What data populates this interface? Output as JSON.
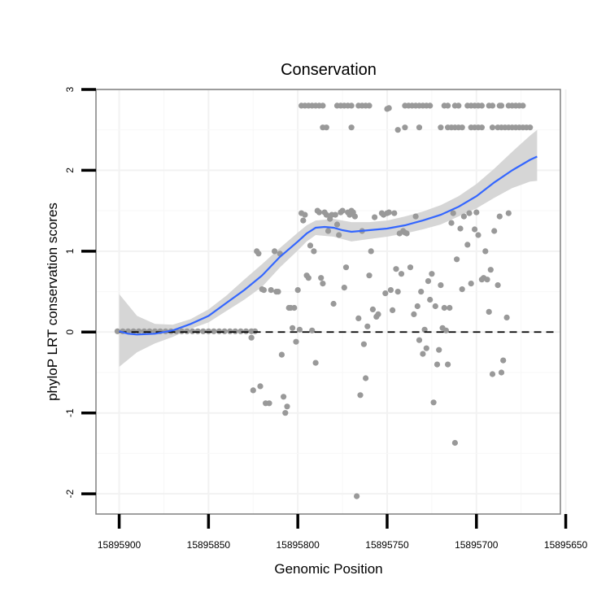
{
  "chart_data": {
    "type": "scatter",
    "title": "Conservation",
    "xlabel": "Genomic Position",
    "ylabel": "phyloP LRT conservation scores",
    "x_reversed": true,
    "xlim": [
      15895913,
      15895653
    ],
    "ylim": [
      -2.25,
      3.0
    ],
    "xticks": [
      15895900,
      15895850,
      15895800,
      15895750,
      15895700,
      15895650
    ],
    "yticks": [
      -2,
      -1,
      0,
      1,
      2,
      3
    ],
    "grid": true,
    "reference_line": 0,
    "colors": {
      "points": "#999999",
      "smooth": "#3366FF",
      "ribbon": "#D6D6D6",
      "frame": "#808080"
    },
    "points": [
      [
        15895901,
        0.01
      ],
      [
        15895898,
        0.01
      ],
      [
        15895895,
        0.01
      ],
      [
        15895892,
        0.01
      ],
      [
        15895889,
        0.01
      ],
      [
        15895886,
        0.01
      ],
      [
        15895883,
        0.01
      ],
      [
        15895880,
        0.01
      ],
      [
        15895877,
        0.01
      ],
      [
        15895874,
        0.01
      ],
      [
        15895871,
        0.01
      ],
      [
        15895868,
        0.01
      ],
      [
        15895865,
        0.01
      ],
      [
        15895862,
        0.01
      ],
      [
        15895859,
        0.01
      ],
      [
        15895856,
        0.01
      ],
      [
        15895853,
        0.01
      ],
      [
        15895850,
        0.01
      ],
      [
        15895847,
        0.01
      ],
      [
        15895844,
        0.01
      ],
      [
        15895841,
        0.01
      ],
      [
        15895838,
        0.01
      ],
      [
        15895835,
        0.01
      ],
      [
        15895832,
        0.01
      ],
      [
        15895829,
        0.01
      ],
      [
        15895826,
        0.01
      ],
      [
        15895824,
        0.01
      ],
      [
        15895826,
        -0.07
      ],
      [
        15895825,
        -0.72
      ],
      [
        15895823,
        1.0
      ],
      [
        15895822,
        0.97
      ],
      [
        15895821,
        -0.67
      ],
      [
        15895820,
        0.53
      ],
      [
        15895819,
        0.52
      ],
      [
        15895818,
        -0.88
      ],
      [
        15895816,
        -0.88
      ],
      [
        15895815,
        0.52
      ],
      [
        15895813,
        1.0
      ],
      [
        15895812,
        0.5
      ],
      [
        15895811,
        0.5
      ],
      [
        15895810,
        0.97
      ],
      [
        15895809,
        -0.28
      ],
      [
        15895808,
        -0.8
      ],
      [
        15895807,
        -1.0
      ],
      [
        15895806,
        -0.92
      ],
      [
        15895805,
        0.3
      ],
      [
        15895804,
        0.3
      ],
      [
        15895803,
        0.05
      ],
      [
        15895802,
        0.3
      ],
      [
        15895801,
        -0.12
      ],
      [
        15895800,
        0.52
      ],
      [
        15895799,
        0.03
      ],
      [
        15895798,
        1.47
      ],
      [
        15895797,
        1.38
      ],
      [
        15895796,
        1.45
      ],
      [
        15895795,
        0.7
      ],
      [
        15895794,
        0.67
      ],
      [
        15895793,
        1.07
      ],
      [
        15895792,
        0.02
      ],
      [
        15895791,
        1.0
      ],
      [
        15895790,
        -0.38
      ],
      [
        15895789,
        1.5
      ],
      [
        15895788,
        1.48
      ],
      [
        15895787,
        0.67
      ],
      [
        15895786,
        0.6
      ],
      [
        15895785,
        1.48
      ],
      [
        15895784,
        1.45
      ],
      [
        15895783,
        1.25
      ],
      [
        15895782,
        1.4
      ],
      [
        15895781,
        1.45
      ],
      [
        15895780,
        0.35
      ],
      [
        15895779,
        1.45
      ],
      [
        15895778,
        1.33
      ],
      [
        15895777,
        1.2
      ],
      [
        15895776,
        1.48
      ],
      [
        15895775,
        1.5
      ],
      [
        15895774,
        0.55
      ],
      [
        15895773,
        0.8
      ],
      [
        15895772,
        1.48
      ],
      [
        15895771,
        1.45
      ],
      [
        15895770,
        1.5
      ],
      [
        15895769,
        1.48
      ],
      [
        15895768,
        1.43
      ],
      [
        15895767,
        -2.03
      ],
      [
        15895766,
        0.17
      ],
      [
        15895765,
        -0.78
      ],
      [
        15895764,
        1.25
      ],
      [
        15895763,
        -0.15
      ],
      [
        15895762,
        -0.57
      ],
      [
        15895761,
        0.07
      ],
      [
        15895760,
        0.7
      ],
      [
        15895759,
        1.0
      ],
      [
        15895758,
        0.28
      ],
      [
        15895757,
        1.42
      ],
      [
        15895756,
        0.19
      ],
      [
        15895755,
        0.22
      ],
      [
        15895753,
        1.47
      ],
      [
        15895752,
        1.45
      ],
      [
        15895751,
        0.48
      ],
      [
        15895750,
        1.47
      ],
      [
        15895749,
        1.48
      ],
      [
        15895748,
        0.52
      ],
      [
        15895747,
        0.27
      ],
      [
        15895746,
        1.47
      ],
      [
        15895745,
        0.78
      ],
      [
        15895744,
        0.5
      ],
      [
        15895743,
        1.22
      ],
      [
        15895742,
        0.72
      ],
      [
        15895741,
        1.25
      ],
      [
        15895740,
        1.23
      ],
      [
        15895739,
        1.22
      ],
      [
        15895737,
        0.8
      ],
      [
        15895735,
        0.22
      ],
      [
        15895734,
        1.43
      ],
      [
        15895733,
        0.32
      ],
      [
        15895732,
        -0.1
      ],
      [
        15895731,
        0.5
      ],
      [
        15895730,
        -0.27
      ],
      [
        15895729,
        0.03
      ],
      [
        15895728,
        -0.2
      ],
      [
        15895727,
        0.63
      ],
      [
        15895726,
        0.4
      ],
      [
        15895725,
        0.72
      ],
      [
        15895724,
        -0.87
      ],
      [
        15895723,
        0.32
      ],
      [
        15895722,
        -0.4
      ],
      [
        15895721,
        -0.22
      ],
      [
        15895720,
        0.58
      ],
      [
        15895719,
        0.05
      ],
      [
        15895718,
        0.3
      ],
      [
        15895717,
        0.02
      ],
      [
        15895716,
        -0.4
      ],
      [
        15895715,
        0.3
      ],
      [
        15895714,
        1.35
      ],
      [
        15895713,
        1.47
      ],
      [
        15895712,
        -1.37
      ],
      [
        15895711,
        0.9
      ],
      [
        15895709,
        1.28
      ],
      [
        15895708,
        0.53
      ],
      [
        15895707,
        1.43
      ],
      [
        15895705,
        1.08
      ],
      [
        15895704,
        1.47
      ],
      [
        15895703,
        0.6
      ],
      [
        15895701,
        1.27
      ],
      [
        15895700,
        1.48
      ],
      [
        15895699,
        1.2
      ],
      [
        15895697,
        0.65
      ],
      [
        15895696,
        0.67
      ],
      [
        15895695,
        1.0
      ],
      [
        15895694,
        0.65
      ],
      [
        15895693,
        0.25
      ],
      [
        15895692,
        0.77
      ],
      [
        15895691,
        -0.52
      ],
      [
        15895690,
        1.25
      ],
      [
        15895688,
        0.58
      ],
      [
        15895687,
        1.43
      ],
      [
        15895686,
        -0.5
      ],
      [
        15895685,
        -0.35
      ],
      [
        15895683,
        0.18
      ],
      [
        15895682,
        1.47
      ],
      [
        15895744,
        2.5
      ],
      [
        15895749,
        2.77
      ],
      [
        15895750,
        2.76
      ],
      [
        15895798,
        2.8
      ],
      [
        15895796,
        2.8
      ],
      [
        15895794,
        2.8
      ],
      [
        15895792,
        2.8
      ],
      [
        15895790,
        2.8
      ],
      [
        15895788,
        2.8
      ],
      [
        15895786,
        2.8
      ],
      [
        15895786,
        2.53
      ],
      [
        15895784,
        2.53
      ],
      [
        15895778,
        2.8
      ],
      [
        15895776,
        2.8
      ],
      [
        15895774,
        2.8
      ],
      [
        15895772,
        2.8
      ],
      [
        15895770,
        2.8
      ],
      [
        15895770,
        2.53
      ],
      [
        15895766,
        2.8
      ],
      [
        15895764,
        2.8
      ],
      [
        15895762,
        2.8
      ],
      [
        15895760,
        2.8
      ],
      [
        15895740,
        2.8
      ],
      [
        15895738,
        2.8
      ],
      [
        15895736,
        2.8
      ],
      [
        15895734,
        2.8
      ],
      [
        15895732,
        2.8
      ],
      [
        15895730,
        2.8
      ],
      [
        15895728,
        2.8
      ],
      [
        15895740,
        2.53
      ],
      [
        15895732,
        2.53
      ],
      [
        15895718,
        2.8
      ],
      [
        15895716,
        2.8
      ],
      [
        15895705,
        2.8
      ],
      [
        15895703,
        2.8
      ],
      [
        15895701,
        2.8
      ],
      [
        15895699,
        2.8
      ],
      [
        15895697,
        2.8
      ],
      [
        15895693,
        2.8
      ],
      [
        15895691,
        2.8
      ],
      [
        15895686,
        2.8
      ],
      [
        15895682,
        2.8
      ],
      [
        15895680,
        2.8
      ],
      [
        15895678,
        2.8
      ],
      [
        15895676,
        2.8
      ],
      [
        15895674,
        2.8
      ],
      [
        15895716,
        2.53
      ],
      [
        15895714,
        2.53
      ],
      [
        15895712,
        2.53
      ],
      [
        15895710,
        2.53
      ],
      [
        15895708,
        2.53
      ],
      [
        15895703,
        2.53
      ],
      [
        15895701,
        2.53
      ],
      [
        15895699,
        2.53
      ],
      [
        15895697,
        2.53
      ],
      [
        15895691,
        2.53
      ],
      [
        15895688,
        2.53
      ],
      [
        15895686,
        2.53
      ],
      [
        15895684,
        2.53
      ],
      [
        15895682,
        2.53
      ],
      [
        15895680,
        2.53
      ],
      [
        15895678,
        2.53
      ],
      [
        15895676,
        2.53
      ],
      [
        15895674,
        2.53
      ],
      [
        15895672,
        2.53
      ],
      [
        15895670,
        2.53
      ],
      [
        15895712,
        2.8
      ],
      [
        15895710,
        2.8
      ],
      [
        15895687,
        2.8
      ],
      [
        15895726,
        2.8
      ],
      [
        15895720,
        2.53
      ]
    ],
    "smooth": [
      [
        15895900,
        0.01
      ],
      [
        15895895,
        -0.02
      ],
      [
        15895890,
        -0.03
      ],
      [
        15895880,
        -0.02
      ],
      [
        15895870,
        0.02
      ],
      [
        15895860,
        0.1
      ],
      [
        15895850,
        0.2
      ],
      [
        15895840,
        0.36
      ],
      [
        15895830,
        0.52
      ],
      [
        15895820,
        0.7
      ],
      [
        15895810,
        0.93
      ],
      [
        15895800,
        1.12
      ],
      [
        15895795,
        1.22
      ],
      [
        15895790,
        1.29
      ],
      [
        15895785,
        1.3
      ],
      [
        15895780,
        1.29
      ],
      [
        15895775,
        1.26
      ],
      [
        15895770,
        1.24
      ],
      [
        15895760,
        1.26
      ],
      [
        15895750,
        1.28
      ],
      [
        15895740,
        1.32
      ],
      [
        15895730,
        1.38
      ],
      [
        15895720,
        1.45
      ],
      [
        15895710,
        1.55
      ],
      [
        15895700,
        1.68
      ],
      [
        15895690,
        1.85
      ],
      [
        15895680,
        2.0
      ],
      [
        15895670,
        2.13
      ],
      [
        15895666,
        2.17
      ]
    ],
    "ribbon_upper": [
      [
        15895900,
        0.47
      ],
      [
        15895890,
        0.2
      ],
      [
        15895880,
        0.1
      ],
      [
        15895870,
        0.09
      ],
      [
        15895860,
        0.16
      ],
      [
        15895850,
        0.28
      ],
      [
        15895840,
        0.45
      ],
      [
        15895830,
        0.65
      ],
      [
        15895820,
        0.84
      ],
      [
        15895810,
        1.04
      ],
      [
        15895800,
        1.23
      ],
      [
        15895795,
        1.32
      ],
      [
        15895790,
        1.38
      ],
      [
        15895780,
        1.4
      ],
      [
        15895770,
        1.36
      ],
      [
        15895760,
        1.36
      ],
      [
        15895750,
        1.38
      ],
      [
        15895740,
        1.43
      ],
      [
        15895730,
        1.49
      ],
      [
        15895720,
        1.57
      ],
      [
        15895710,
        1.68
      ],
      [
        15895700,
        1.83
      ],
      [
        15895690,
        2.02
      ],
      [
        15895680,
        2.23
      ],
      [
        15895670,
        2.43
      ],
      [
        15895666,
        2.5
      ]
    ],
    "ribbon_lower": [
      [
        15895900,
        -0.43
      ],
      [
        15895890,
        -0.25
      ],
      [
        15895880,
        -0.14
      ],
      [
        15895870,
        -0.06
      ],
      [
        15895860,
        0.04
      ],
      [
        15895850,
        0.12
      ],
      [
        15895840,
        0.26
      ],
      [
        15895830,
        0.4
      ],
      [
        15895820,
        0.56
      ],
      [
        15895810,
        0.8
      ],
      [
        15895800,
        1.01
      ],
      [
        15895795,
        1.12
      ],
      [
        15895790,
        1.2
      ],
      [
        15895780,
        1.18
      ],
      [
        15895770,
        1.12
      ],
      [
        15895760,
        1.15
      ],
      [
        15895750,
        1.18
      ],
      [
        15895740,
        1.22
      ],
      [
        15895730,
        1.27
      ],
      [
        15895720,
        1.33
      ],
      [
        15895710,
        1.43
      ],
      [
        15895700,
        1.53
      ],
      [
        15895690,
        1.66
      ],
      [
        15895680,
        1.78
      ],
      [
        15895670,
        1.86
      ],
      [
        15895666,
        1.87
      ]
    ]
  }
}
